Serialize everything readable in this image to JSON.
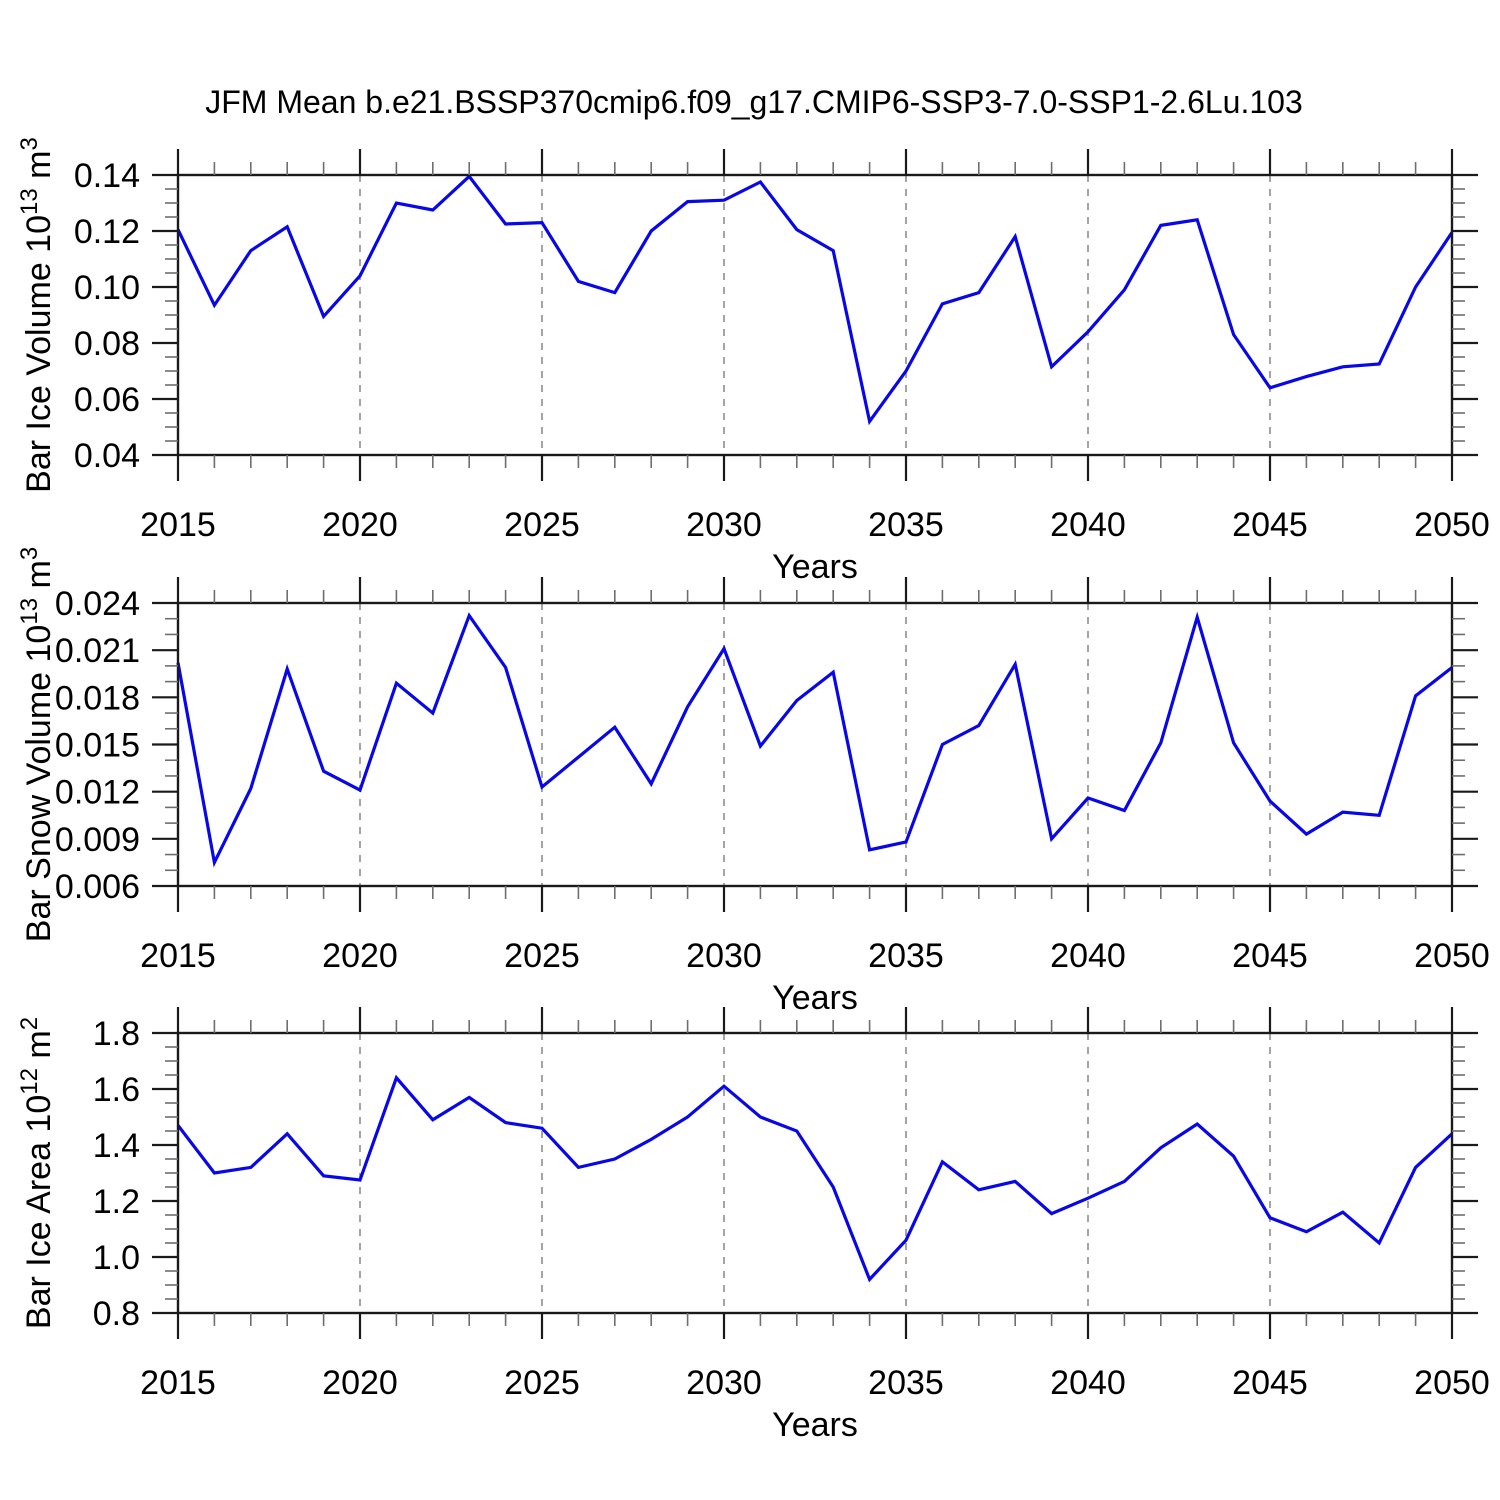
{
  "title": "JFM Mean b.e21.BSSP370cmip6.f09_g17.CMIP6-SSP3-7.0-SSP1-2.6Lu.103",
  "xlabel": "Years",
  "colors": {
    "line": "#0707e8",
    "frame": "#1a1a1a",
    "major_tick": "#1a1a1a",
    "minor_tick": "#6e6e6e",
    "grid": "#9a9a9a",
    "text": "#000000",
    "background": "#ffffff"
  },
  "x": {
    "start": 2015,
    "end": 2050,
    "years": [
      2015,
      2016,
      2017,
      2018,
      2019,
      2020,
      2021,
      2022,
      2023,
      2024,
      2025,
      2026,
      2027,
      2028,
      2029,
      2030,
      2031,
      2032,
      2033,
      2034,
      2035,
      2036,
      2037,
      2038,
      2039,
      2040,
      2041,
      2042,
      2043,
      2044,
      2045,
      2046,
      2047,
      2048,
      2049,
      2050
    ],
    "major_ticks": [
      2015,
      2020,
      2025,
      2030,
      2035,
      2040,
      2045,
      2050
    ],
    "tick_labels": [
      "2015",
      "2020",
      "2025",
      "2030",
      "2035",
      "2040",
      "2045",
      "2050"
    ],
    "minor_step": 1,
    "grid_years": [
      2020,
      2025,
      2030,
      2035,
      2040,
      2045
    ]
  },
  "chart_data": [
    {
      "id": "ice-volume",
      "type": "line",
      "ylabel_text": "Bar Ice Volume 10^13 m^3",
      "ylabel_segments": [
        {
          "t": "Bar Ice Volume 10"
        },
        {
          "s": "13"
        },
        {
          "t": " m"
        },
        {
          "s": "3"
        }
      ],
      "ylim": [
        0.04,
        0.14
      ],
      "ytick_values": [
        0.14,
        0.12,
        0.1,
        0.08,
        0.06,
        0.04
      ],
      "ytick_labels": [
        "0.14",
        "0.12",
        "0.10",
        "0.08",
        "0.06",
        "0.04"
      ],
      "y_minor_step": 0.005,
      "grid": "vertical-dashed",
      "values": [
        0.1205,
        0.0935,
        0.113,
        0.1215,
        0.0895,
        0.104,
        0.13,
        0.1275,
        0.1395,
        0.1225,
        0.123,
        0.102,
        0.098,
        0.12,
        0.1305,
        0.131,
        0.1375,
        0.1205,
        0.113,
        0.052,
        0.07,
        0.094,
        0.098,
        0.118,
        0.0715,
        0.084,
        0.099,
        0.122,
        0.124,
        0.083,
        0.064,
        0.068,
        0.0715,
        0.0725,
        0.1,
        0.1195
      ]
    },
    {
      "id": "snow-volume",
      "type": "line",
      "ylabel_text": "Bar Snow Volume 10^13 m^3",
      "ylabel_segments": [
        {
          "t": "Bar Snow Volume 10"
        },
        {
          "s": "13"
        },
        {
          "t": " m"
        },
        {
          "s": "3"
        }
      ],
      "ylim": [
        0.006,
        0.024
      ],
      "ytick_values": [
        0.024,
        0.021,
        0.018,
        0.015,
        0.012,
        0.009,
        0.006
      ],
      "ytick_labels": [
        "0.024",
        "0.021",
        "0.018",
        "0.015",
        "0.012",
        "0.009",
        "0.006"
      ],
      "y_minor_step": 0.001,
      "grid": "vertical-dashed",
      "values": [
        0.0202,
        0.0075,
        0.0122,
        0.0198,
        0.0133,
        0.0121,
        0.0189,
        0.017,
        0.0232,
        0.0199,
        0.0123,
        0.0142,
        0.0161,
        0.0125,
        0.0174,
        0.0211,
        0.0149,
        0.0178,
        0.0196,
        0.0083,
        0.0088,
        0.015,
        0.0162,
        0.0201,
        0.009,
        0.0116,
        0.0108,
        0.0151,
        0.0231,
        0.0151,
        0.0114,
        0.0093,
        0.0107,
        0.0105,
        0.0181,
        0.0199
      ]
    },
    {
      "id": "ice-area",
      "type": "line",
      "ylabel_text": "Bar Ice Area 10^12 m^2",
      "ylabel_segments": [
        {
          "t": "Bar Ice Area 10"
        },
        {
          "s": "12"
        },
        {
          "t": " m"
        },
        {
          "s": "2"
        }
      ],
      "ylim": [
        0.8,
        1.8
      ],
      "ytick_values": [
        1.8,
        1.6,
        1.4,
        1.2,
        1.0,
        0.8
      ],
      "ytick_labels": [
        "1.8",
        "1.6",
        "1.4",
        "1.2",
        "1.0",
        "0.8"
      ],
      "y_minor_step": 0.05,
      "grid": "vertical-dashed",
      "values": [
        1.47,
        1.3,
        1.32,
        1.44,
        1.29,
        1.275,
        1.64,
        1.49,
        1.57,
        1.48,
        1.46,
        1.32,
        1.35,
        1.42,
        1.5,
        1.61,
        1.5,
        1.45,
        1.25,
        0.92,
        1.06,
        1.34,
        1.24,
        1.27,
        1.155,
        1.21,
        1.27,
        1.39,
        1.475,
        1.36,
        1.14,
        1.09,
        1.16,
        1.05,
        1.32,
        1.44
      ]
    }
  ]
}
